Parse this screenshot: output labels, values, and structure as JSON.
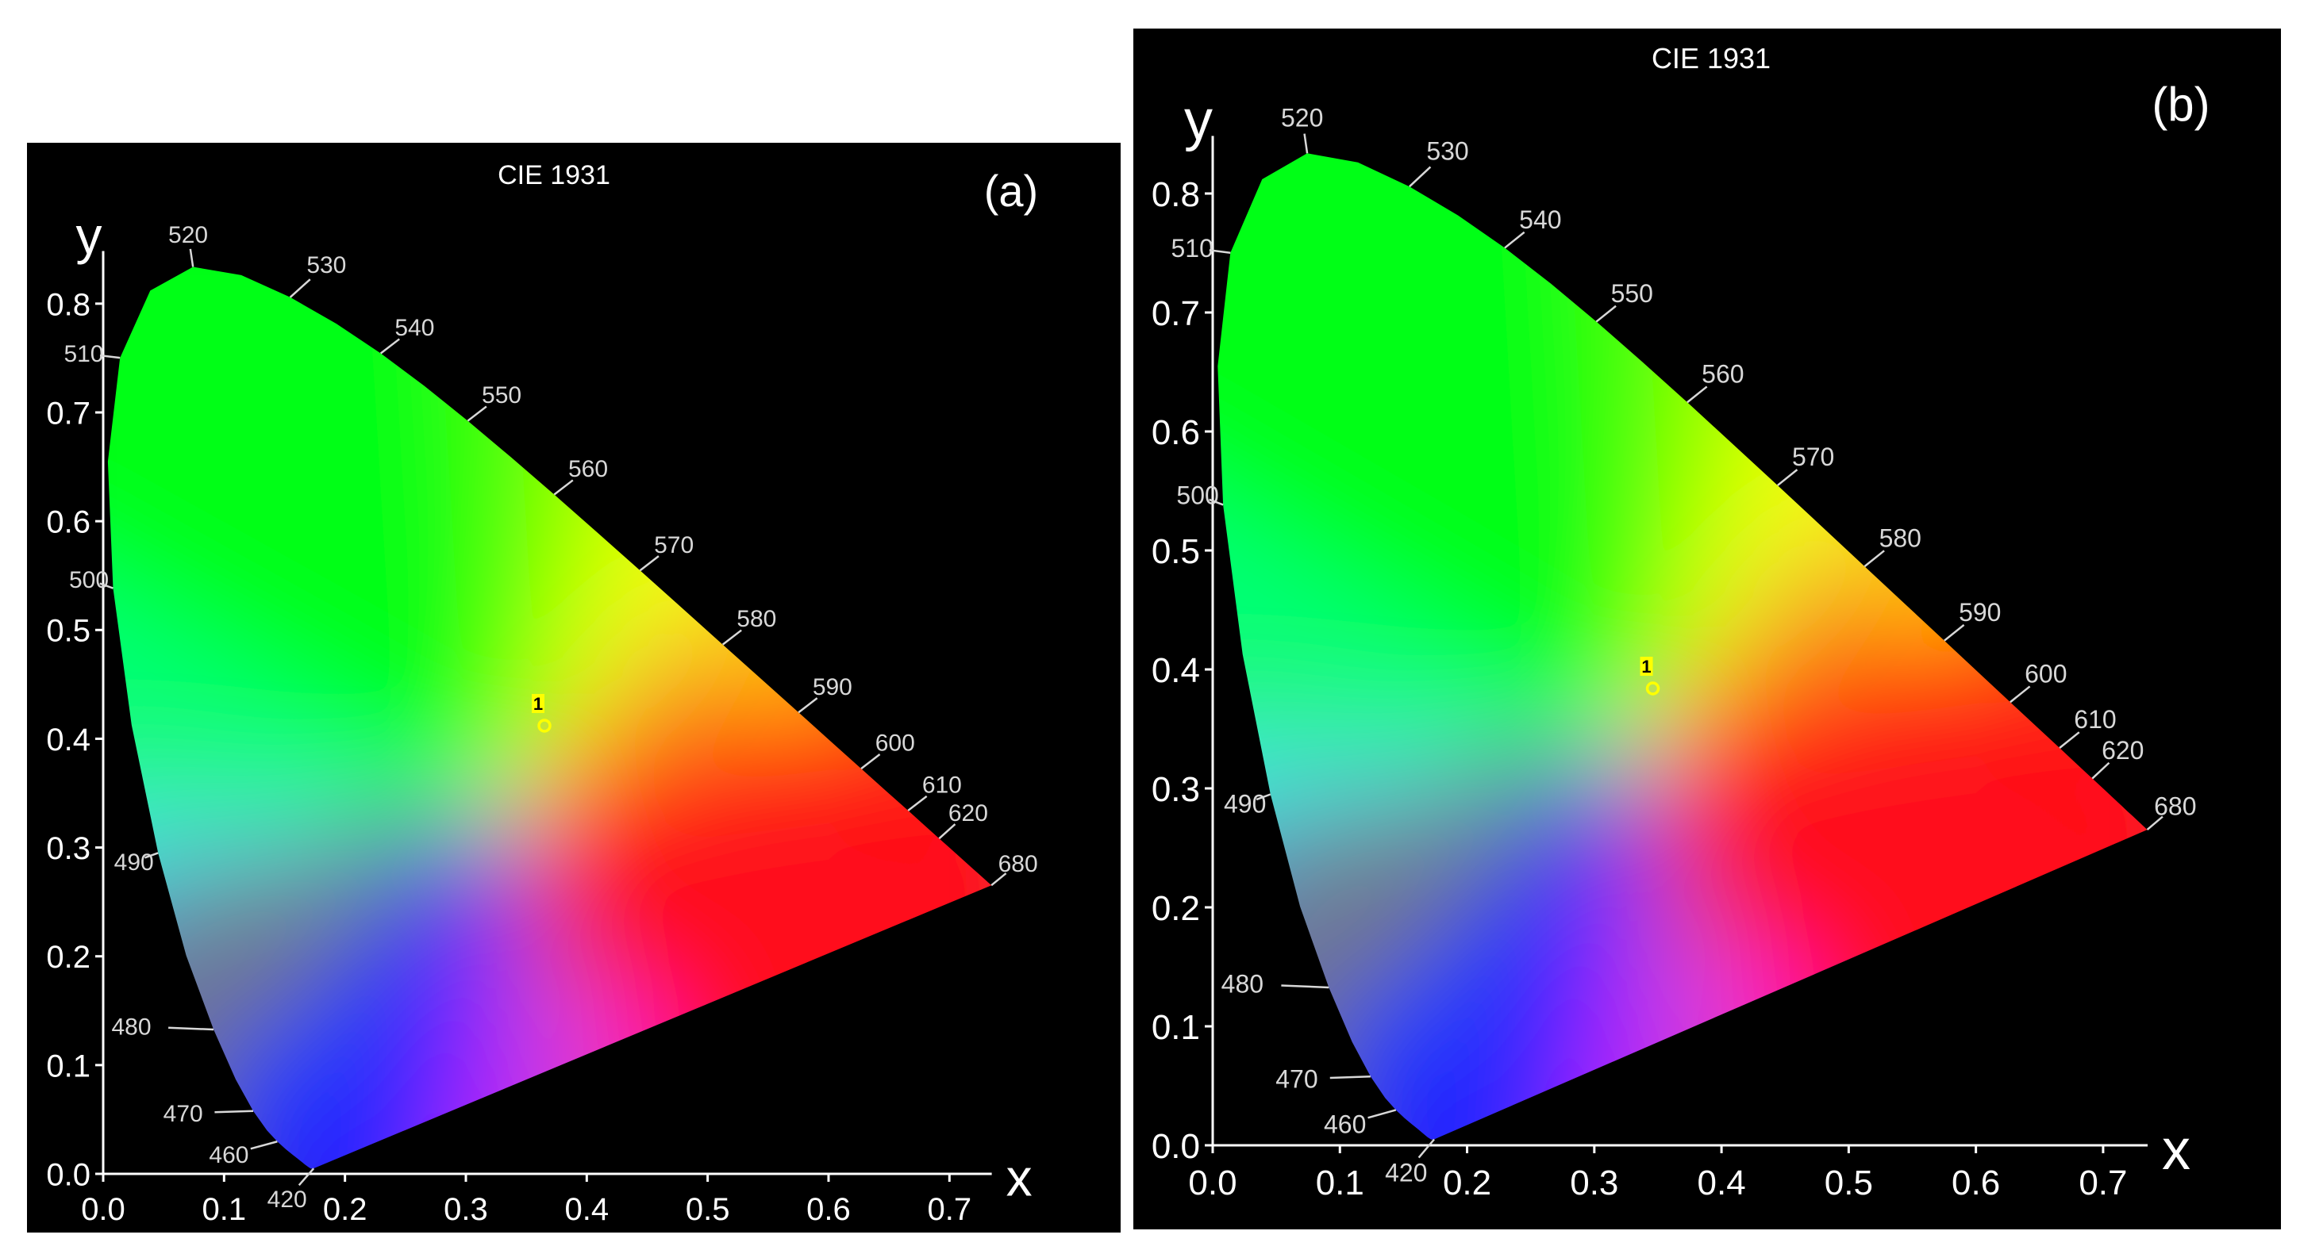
{
  "chart_data": [
    {
      "type": "scatter",
      "title": "CIE 1931",
      "panel_label": "(a)",
      "xlabel": "x",
      "ylabel": "y",
      "xlim": [
        0.0,
        0.73
      ],
      "ylim": [
        0.0,
        0.84
      ],
      "x_ticks": [
        "0.0",
        "0.1",
        "0.2",
        "0.3",
        "0.4",
        "0.5",
        "0.6",
        "0.7"
      ],
      "y_ticks": [
        "0.0",
        "0.1",
        "0.2",
        "0.3",
        "0.4",
        "0.5",
        "0.6",
        "0.7",
        "0.8"
      ],
      "wavelength_labels": [
        {
          "nm": "420",
          "x": 0.1741,
          "y": 0.005
        },
        {
          "nm": "460",
          "x": 0.144,
          "y": 0.0297
        },
        {
          "nm": "470",
          "x": 0.1241,
          "y": 0.0578
        },
        {
          "nm": "480",
          "x": 0.0913,
          "y": 0.1327
        },
        {
          "nm": "490",
          "x": 0.0454,
          "y": 0.295
        },
        {
          "nm": "500",
          "x": 0.0082,
          "y": 0.5384
        },
        {
          "nm": "510",
          "x": 0.0139,
          "y": 0.7502
        },
        {
          "nm": "520",
          "x": 0.0743,
          "y": 0.8338
        },
        {
          "nm": "530",
          "x": 0.1547,
          "y": 0.8059
        },
        {
          "nm": "540",
          "x": 0.2296,
          "y": 0.7543
        },
        {
          "nm": "550",
          "x": 0.3016,
          "y": 0.6923
        },
        {
          "nm": "560",
          "x": 0.3731,
          "y": 0.6245
        },
        {
          "nm": "570",
          "x": 0.4441,
          "y": 0.5547
        },
        {
          "nm": "580",
          "x": 0.5125,
          "y": 0.4866
        },
        {
          "nm": "590",
          "x": 0.5752,
          "y": 0.4242
        },
        {
          "nm": "600",
          "x": 0.627,
          "y": 0.3725
        },
        {
          "nm": "610",
          "x": 0.6658,
          "y": 0.334
        },
        {
          "nm": "620",
          "x": 0.6915,
          "y": 0.3083
        },
        {
          "nm": "680",
          "x": 0.7347,
          "y": 0.2653
        }
      ],
      "points": [
        {
          "label": "1",
          "x": 0.365,
          "y": 0.412
        }
      ]
    },
    {
      "type": "scatter",
      "title": "CIE 1931",
      "panel_label": "(b)",
      "xlabel": "x",
      "ylabel": "y",
      "xlim": [
        0.0,
        0.73
      ],
      "ylim": [
        0.0,
        0.84
      ],
      "x_ticks": [
        "0.0",
        "0.1",
        "0.2",
        "0.3",
        "0.4",
        "0.5",
        "0.6",
        "0.7"
      ],
      "y_ticks": [
        "0.0",
        "0.1",
        "0.2",
        "0.3",
        "0.4",
        "0.5",
        "0.6",
        "0.7",
        "0.8"
      ],
      "wavelength_labels": [
        {
          "nm": "420",
          "x": 0.1741,
          "y": 0.005
        },
        {
          "nm": "460",
          "x": 0.144,
          "y": 0.0297
        },
        {
          "nm": "470",
          "x": 0.1241,
          "y": 0.0578
        },
        {
          "nm": "480",
          "x": 0.0913,
          "y": 0.1327
        },
        {
          "nm": "490",
          "x": 0.0454,
          "y": 0.295
        },
        {
          "nm": "500",
          "x": 0.0082,
          "y": 0.5384
        },
        {
          "nm": "510",
          "x": 0.0139,
          "y": 0.7502
        },
        {
          "nm": "520",
          "x": 0.0743,
          "y": 0.8338
        },
        {
          "nm": "530",
          "x": 0.1547,
          "y": 0.8059
        },
        {
          "nm": "540",
          "x": 0.2296,
          "y": 0.7543
        },
        {
          "nm": "550",
          "x": 0.3016,
          "y": 0.6923
        },
        {
          "nm": "560",
          "x": 0.3731,
          "y": 0.6245
        },
        {
          "nm": "570",
          "x": 0.4441,
          "y": 0.5547
        },
        {
          "nm": "580",
          "x": 0.5125,
          "y": 0.4866
        },
        {
          "nm": "590",
          "x": 0.5752,
          "y": 0.4242
        },
        {
          "nm": "600",
          "x": 0.627,
          "y": 0.3725
        },
        {
          "nm": "610",
          "x": 0.6658,
          "y": 0.334
        },
        {
          "nm": "620",
          "x": 0.6915,
          "y": 0.3083
        },
        {
          "nm": "680",
          "x": 0.7347,
          "y": 0.2653
        }
      ],
      "points": [
        {
          "label": "1",
          "x": 0.346,
          "y": 0.384
        }
      ]
    }
  ],
  "colors": {
    "background": "#000000",
    "axis": "#ffffff",
    "wavelength_text": "#d8d8d8",
    "marker": "#ffff00"
  }
}
